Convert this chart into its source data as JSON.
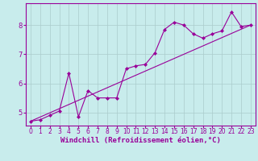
{
  "xlabel": "Windchill (Refroidissement éolien,°C)",
  "bg_color": "#c8ecec",
  "line_color": "#990099",
  "grid_color": "#b8d8d8",
  "xlim": [
    -0.5,
    23.5
  ],
  "ylim": [
    4.55,
    8.75
  ],
  "yticks": [
    5,
    6,
    7,
    8
  ],
  "xticks": [
    0,
    1,
    2,
    3,
    4,
    5,
    6,
    7,
    8,
    9,
    10,
    11,
    12,
    13,
    14,
    15,
    16,
    17,
    18,
    19,
    20,
    21,
    22,
    23
  ],
  "jagged_x": [
    0,
    1,
    2,
    3,
    4,
    5,
    6,
    7,
    8,
    9,
    10,
    11,
    12,
    13,
    14,
    15,
    16,
    17,
    18,
    19,
    20,
    21,
    22,
    23
  ],
  "jagged_y": [
    4.7,
    4.75,
    4.9,
    5.05,
    6.35,
    4.85,
    5.75,
    5.5,
    5.5,
    5.5,
    6.5,
    6.6,
    6.65,
    7.05,
    7.85,
    8.1,
    8.0,
    7.7,
    7.55,
    7.7,
    7.8,
    8.45,
    7.95,
    8.0
  ],
  "trend_x": [
    0,
    23
  ],
  "trend_y": [
    4.7,
    8.0
  ],
  "xlabel_fontsize": 6.5,
  "tick_fontsize": 5.5
}
